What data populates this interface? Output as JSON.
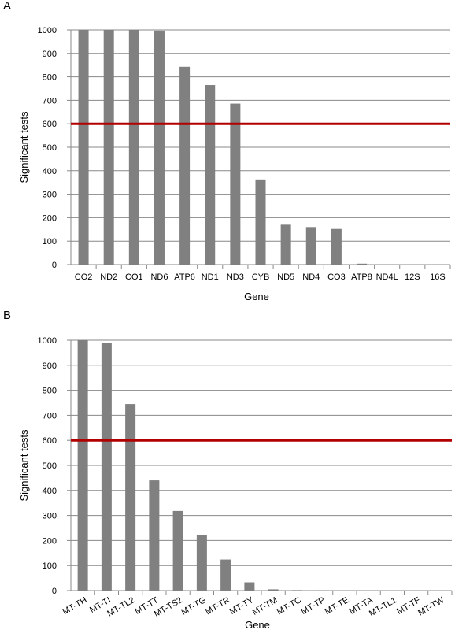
{
  "chart_data": [
    {
      "type": "bar",
      "panel_label": "A",
      "xlabel": "Gene",
      "ylabel": "Significant tests",
      "categories": [
        "CO2",
        "ND2",
        "CO1",
        "ND6",
        "ATP6",
        "ND1",
        "ND3",
        "CYB",
        "ND5",
        "ND4",
        "CO3",
        "ATP8",
        "ND4L",
        "12S",
        "16S"
      ],
      "values": [
        1000,
        1000,
        1000,
        997,
        843,
        765,
        686,
        363,
        170,
        160,
        152,
        4,
        0,
        0,
        0
      ],
      "color": "#808080",
      "ylim": [
        0,
        1000
      ],
      "yticks": [
        0,
        100,
        200,
        300,
        400,
        500,
        600,
        700,
        800,
        900,
        1000
      ],
      "grid": true,
      "reference_line": {
        "value": 600,
        "color": "#b00000"
      }
    },
    {
      "type": "bar",
      "panel_label": "B",
      "xlabel": "Gene",
      "ylabel": "Significant tests",
      "categories": [
        "MT-TH",
        "MT-TI",
        "MT-TL2",
        "MT-TT",
        "MT-TS2",
        "MT-TG",
        "MT-TR",
        "MT-TY",
        "MT-TM",
        "MT-TC",
        "MT-TP",
        "MT-TE",
        "MT-TA",
        "MT-TL1",
        "MT-TF",
        "MT-TW"
      ],
      "values": [
        1000,
        988,
        745,
        440,
        318,
        222,
        124,
        33,
        5,
        2,
        1,
        0,
        0,
        0,
        0,
        0
      ],
      "color": "#808080",
      "ylim": [
        0,
        1000
      ],
      "yticks": [
        0,
        100,
        200,
        300,
        400,
        500,
        600,
        700,
        800,
        900,
        1000
      ],
      "grid": true,
      "reference_line": {
        "value": 600,
        "color": "#b00000"
      }
    }
  ]
}
